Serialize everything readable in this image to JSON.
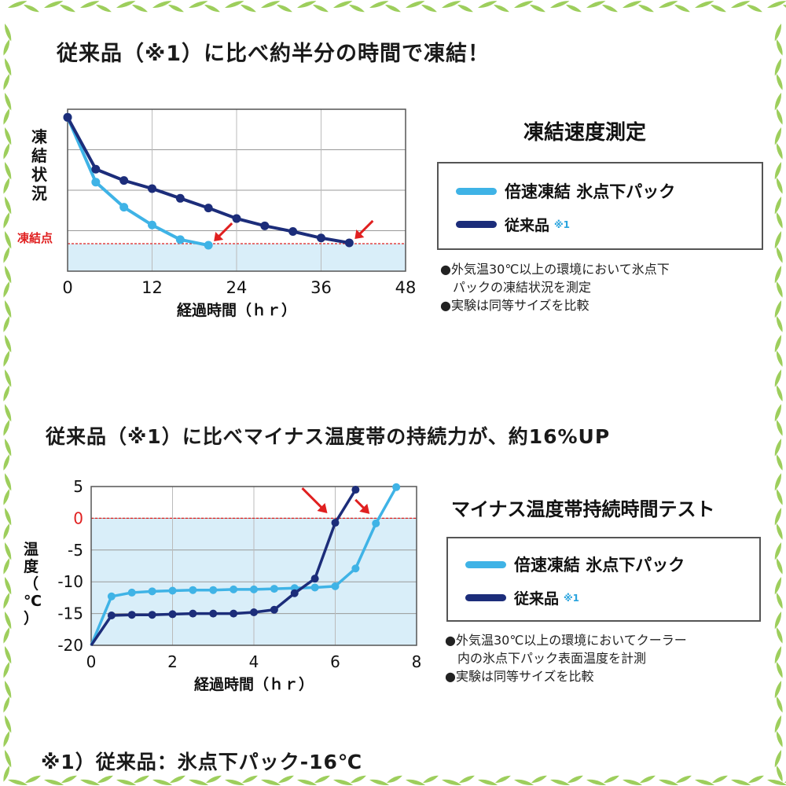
{
  "colors": {
    "new_product": "#3fb3e6",
    "conventional": "#1c2d7a",
    "marker_arrow": "#e02020",
    "threshold": "#e02020",
    "frozen_region": "#d9eef9",
    "leaf_green": "#8cc63f"
  },
  "icons": {
    "border": "bamboo-leaf-icon",
    "bullet": "black-circle-bullet-icon",
    "arrow": "red-arrow-icon"
  },
  "section1": {
    "heading": "従来品（※1）に比べ約半分の時間で凍結！",
    "chart_title": "凍結速度測定",
    "legend": {
      "new_label": "倍速凍結 氷点下パック",
      "old_label": "従来品",
      "old_note": "※1"
    },
    "notes": [
      "●外気温30℃以上の環境において氷点下",
      "パックの凍結状況を測定",
      "●実験は同等サイズを比較"
    ]
  },
  "section2": {
    "heading": "従来品（※1）に比べマイナス温度帯の持続力が、約16%UP",
    "chart_title": "マイナス温度帯持続時間テスト",
    "legend": {
      "new_label": "倍速凍結 氷点下パック",
      "old_label": "従来品",
      "old_note": "※1"
    },
    "notes": [
      "●外気温30℃以上の環境においてクーラー",
      "内の氷点下パック表面温度を計測",
      "●実験は同等サイズを比較"
    ]
  },
  "footnote": "※1）従来品：氷点下パック-16℃",
  "chart_data": [
    {
      "type": "line",
      "title": "凍結速度測定",
      "xlabel": "経過時間（ｈｒ）",
      "ylabel": "凍結状況",
      "threshold_label": "凍結点",
      "xlim": [
        0,
        48
      ],
      "ylim": [
        0,
        1
      ],
      "x_ticks": [
        0,
        12,
        24,
        36,
        48
      ],
      "y_ticks": [],
      "grid": "horizontal",
      "series": [
        {
          "name": "倍速凍結 氷点下パック",
          "x": [
            0,
            4,
            8,
            12,
            16,
            20
          ],
          "y": [
            0.95,
            0.55,
            0.395,
            0.285,
            0.195,
            0.16
          ]
        },
        {
          "name": "従来品",
          "x": [
            0,
            4,
            8,
            12,
            16,
            20,
            24,
            28,
            32,
            36,
            40
          ],
          "y": [
            0.95,
            0.63,
            0.56,
            0.51,
            0.45,
            0.39,
            0.325,
            0.28,
            0.245,
            0.205,
            0.175
          ]
        }
      ],
      "threshold": 0.17
    },
    {
      "type": "line",
      "title": "マイナス温度帯持続時間テスト",
      "xlabel": "経過時間（ｈｒ）",
      "ylabel": "温度（℃）",
      "xlim": [
        0,
        8
      ],
      "ylim": [
        -20,
        5
      ],
      "x_ticks": [
        0,
        2,
        4,
        6,
        8
      ],
      "y_ticks": [
        5,
        0,
        -5,
        -10,
        -15,
        -20
      ],
      "grid": "both",
      "series": [
        {
          "name": "倍速凍結 氷点下パック",
          "x": [
            0,
            0.5,
            1,
            1.5,
            2,
            2.5,
            3,
            3.5,
            4,
            4.5,
            5,
            5.5,
            6,
            6.5,
            7,
            7.5
          ],
          "y": [
            -20,
            -12.3,
            -11.7,
            -11.5,
            -11.4,
            -11.3,
            -11.3,
            -11.2,
            -11.2,
            -11.1,
            -11.0,
            -10.9,
            -10.7,
            -7.9,
            -0.8,
            4.9
          ]
        },
        {
          "name": "従来品",
          "x": [
            0,
            0.5,
            1,
            1.5,
            2,
            2.5,
            3,
            3.5,
            4,
            4.5,
            5,
            5.5,
            6,
            6.5
          ],
          "y": [
            -20,
            -15.3,
            -15.2,
            -15.2,
            -15.1,
            -15.0,
            -15.0,
            -15.0,
            -14.8,
            -14.4,
            -11.8,
            -9.5,
            -0.7,
            4.5
          ]
        }
      ],
      "threshold": 0
    }
  ]
}
